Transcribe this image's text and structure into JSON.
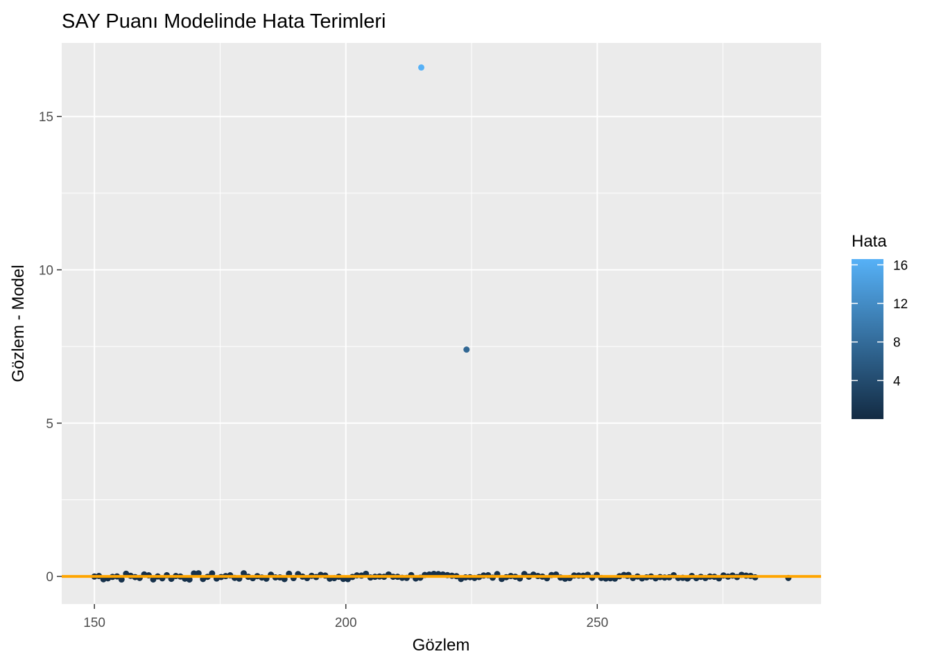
{
  "chart_data": {
    "type": "scatter",
    "title": "SAY Puanı Modelinde Hata Terimleri",
    "xlabel": "Gözlem",
    "ylabel": "Gözlem - Model",
    "xlim": [
      143.5,
      294.5
    ],
    "ylim": [
      -0.9,
      17.4
    ],
    "x_ticks": [
      150,
      200,
      250
    ],
    "y_ticks": [
      0,
      5,
      10,
      15
    ],
    "x_ticks_minor": [
      175,
      225,
      275
    ],
    "y_ticks_minor": [
      2.5,
      7.5,
      12.5
    ],
    "grid": true,
    "background": "#ebebeb",
    "reference_line": {
      "y": 0,
      "color": "#ffa500"
    },
    "points": [
      {
        "x": 215,
        "y": 16.6,
        "hata": 16.6
      },
      {
        "x": 224,
        "y": 7.4,
        "hata": 7.4
      }
    ],
    "residual_band": {
      "x_start": 150,
      "x_end": 282,
      "y_min": -0.12,
      "y_max": 0.12,
      "hata_max": 0.12,
      "note_points": [
        {
          "x": 288,
          "y": -0.05
        },
        {
          "x": 268,
          "y": -0.06
        },
        {
          "x": 256,
          "y": 0.02
        }
      ]
    },
    "legend": {
      "title": "Hata",
      "position": "right",
      "color_low": "#132b43",
      "color_high": "#56b1f7",
      "value_range": [
        0,
        16.6
      ],
      "ticks": [
        4,
        8,
        12,
        16
      ]
    }
  }
}
